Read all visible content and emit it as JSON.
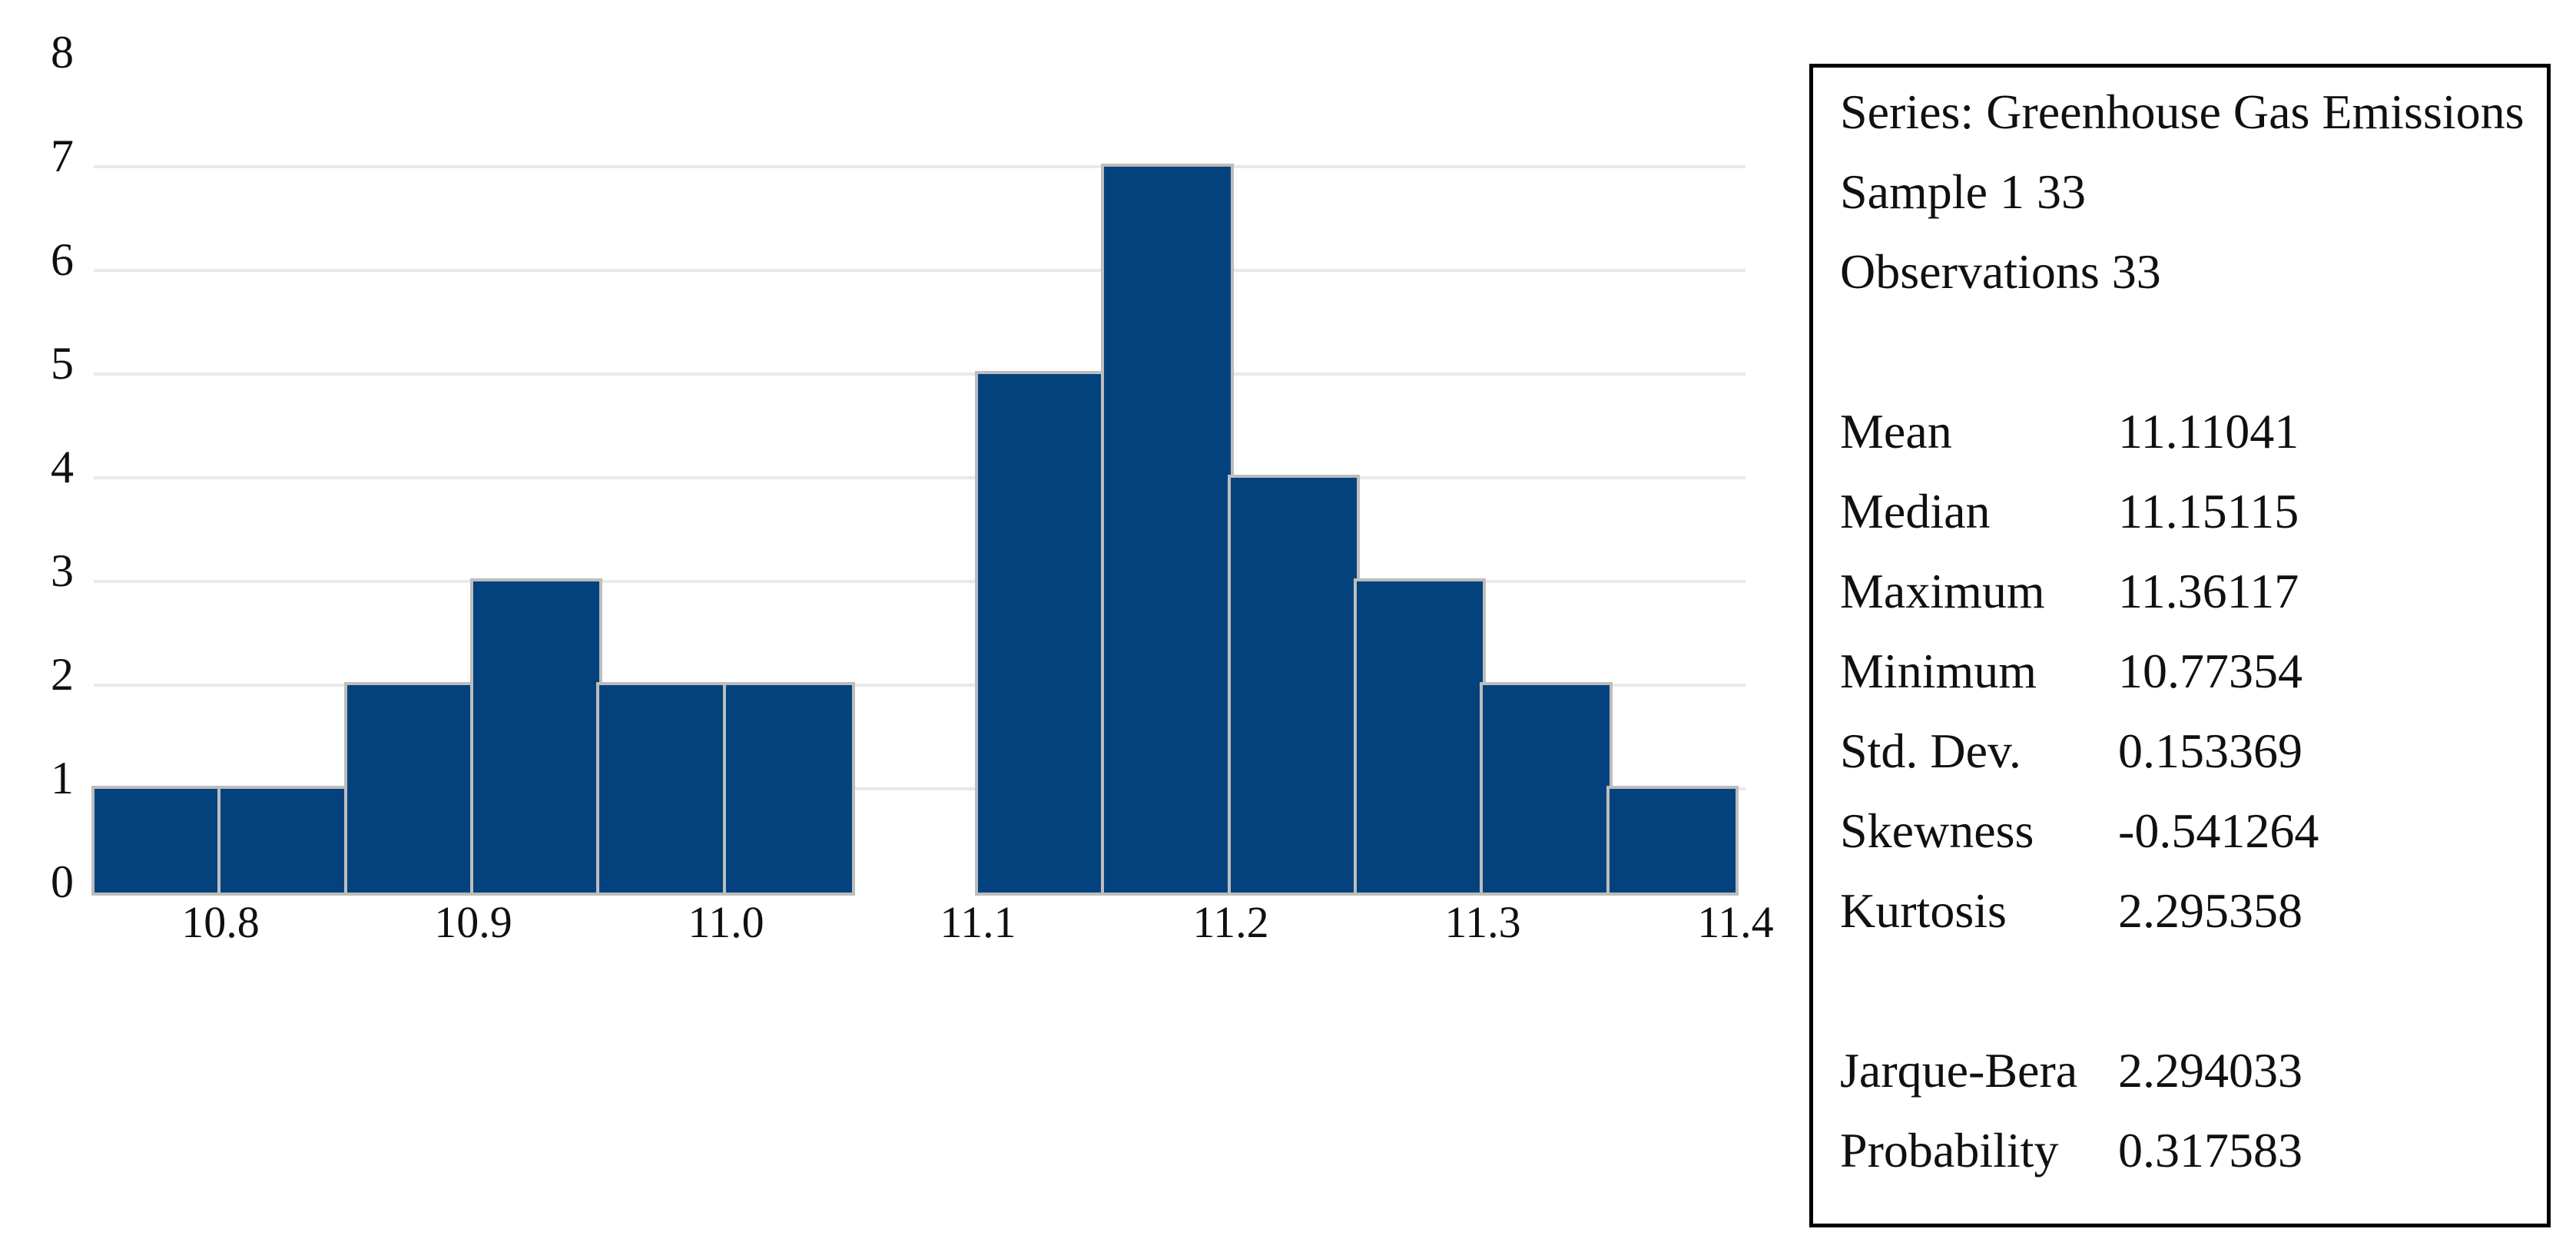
{
  "chart_data": {
    "type": "bar",
    "subtype": "histogram",
    "title": "",
    "xlabel": "",
    "ylabel": "",
    "bin_start": 10.75,
    "bin_width": 0.05,
    "counts": [
      1,
      1,
      2,
      3,
      2,
      2,
      0,
      5,
      7,
      4,
      3,
      2,
      1
    ],
    "bin_edges": [
      10.75,
      10.8,
      10.85,
      10.9,
      10.95,
      11.0,
      11.05,
      11.1,
      11.15,
      11.2,
      11.25,
      11.3,
      11.35,
      11.4
    ],
    "x_ticks": [
      10.8,
      10.9,
      11.0,
      11.1,
      11.2,
      11.3,
      11.4
    ],
    "x_tick_labels": [
      "10.8",
      "10.9",
      "11.0",
      "11.1",
      "11.2",
      "11.3",
      "11.4"
    ],
    "y_ticks": [
      0,
      1,
      2,
      3,
      4,
      5,
      6,
      7,
      8
    ],
    "y_tick_labels": [
      "0",
      "1",
      "2",
      "3",
      "4",
      "5",
      "6",
      "7",
      "8"
    ],
    "xlim": [
      10.75,
      11.4
    ],
    "ylim": [
      0,
      8
    ],
    "grid": "horizontal-only, levels 1 to 7",
    "legend_position": "none",
    "bar_color": "#04427e",
    "bar_border_color": "#bdbdbd",
    "gridline_color": "#e9e9e9"
  },
  "stats": {
    "header_lines": [
      "Series: Greenhouse Gas Emissions",
      "Sample 1 33",
      "Observations 33"
    ],
    "rows": [
      {
        "label": "Mean",
        "value": "11.11041"
      },
      {
        "label": "Median",
        "value": "11.15115"
      },
      {
        "label": "Maximum",
        "value": "11.36117"
      },
      {
        "label": "Minimum",
        "value": "10.77354"
      },
      {
        "label": "Std. Dev.",
        "value": "0.153369"
      },
      {
        "label": "Skewness",
        "value": "-0.541264"
      },
      {
        "label": "Kurtosis",
        "value": "2.295358"
      }
    ],
    "rows2": [
      {
        "label": "Jarque-Bera",
        "value": "2.294033"
      },
      {
        "label": "Probability",
        "value": "0.317583"
      }
    ]
  }
}
